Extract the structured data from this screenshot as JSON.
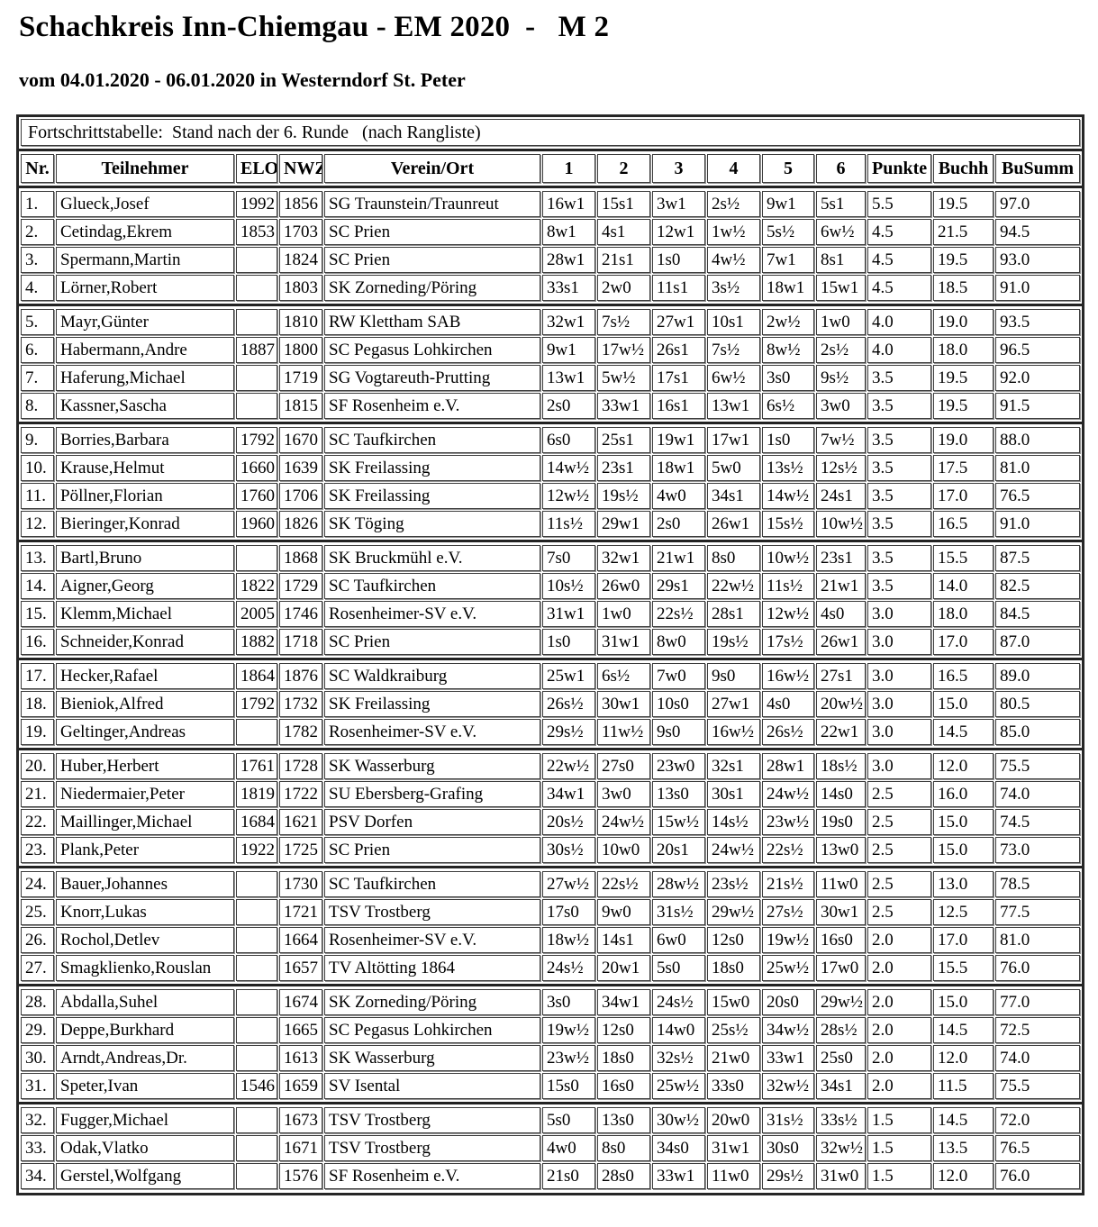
{
  "title": "Schachkreis Inn-Chiemgau - EM 2020  -   M 2",
  "subtitle": "vom 04.01.2020 - 06.01.2020 in Westerndorf St. Peter",
  "table": {
    "caption": "Fortschrittstabelle:  Stand nach der 6. Runde   (nach Rangliste)",
    "headers": [
      "Nr.",
      "Teilnehmer",
      "ELO",
      "NWZ",
      "Verein/Ort",
      "1",
      "2",
      "3",
      "4",
      "5",
      "6",
      "Punkte",
      "Buchh",
      "BuSumm"
    ],
    "group_start_rows": [
      1,
      5,
      9,
      13,
      17,
      20,
      24,
      28,
      32
    ],
    "rows": [
      {
        "nr": "1.",
        "name": "Glueck,Josef",
        "elo": "1992",
        "nwz": "1856",
        "verein": "SG Traunstein/Traunreut",
        "rounds": [
          "16w1",
          "15s1",
          "3w1",
          "2s½",
          "9w1",
          "5s1"
        ],
        "punkte": "5.5",
        "buchh": "19.5",
        "busumm": "97.0"
      },
      {
        "nr": "2.",
        "name": "Cetindag,Ekrem",
        "elo": "1853",
        "nwz": "1703",
        "verein": "SC Prien",
        "rounds": [
          "8w1",
          "4s1",
          "12w1",
          "1w½",
          "5s½",
          "6w½"
        ],
        "punkte": "4.5",
        "buchh": "21.5",
        "busumm": "94.5"
      },
      {
        "nr": "3.",
        "name": "Spermann,Martin",
        "elo": "",
        "nwz": "1824",
        "verein": "SC Prien",
        "rounds": [
          "28w1",
          "21s1",
          "1s0",
          "4w½",
          "7w1",
          "8s1"
        ],
        "punkte": "4.5",
        "buchh": "19.5",
        "busumm": "93.0"
      },
      {
        "nr": "4.",
        "name": "Lörner,Robert",
        "elo": "",
        "nwz": "1803",
        "verein": "SK Zorneding/Pöring",
        "rounds": [
          "33s1",
          "2w0",
          "11s1",
          "3s½",
          "18w1",
          "15w1"
        ],
        "punkte": "4.5",
        "buchh": "18.5",
        "busumm": "91.0"
      },
      {
        "nr": "5.",
        "name": "Mayr,Günter",
        "elo": "",
        "nwz": "1810",
        "verein": "RW Klettham SAB",
        "rounds": [
          "32w1",
          "7s½",
          "27w1",
          "10s1",
          "2w½",
          "1w0"
        ],
        "punkte": "4.0",
        "buchh": "19.0",
        "busumm": "93.5"
      },
      {
        "nr": "6.",
        "name": "Habermann,Andre",
        "elo": "1887",
        "nwz": "1800",
        "verein": "SC Pegasus Lohkirchen",
        "rounds": [
          "9w1",
          "17w½",
          "26s1",
          "7s½",
          "8w½",
          "2s½"
        ],
        "punkte": "4.0",
        "buchh": "18.0",
        "busumm": "96.5"
      },
      {
        "nr": "7.",
        "name": "Haferung,Michael",
        "elo": "",
        "nwz": "1719",
        "verein": "SG Vogtareuth-Prutting",
        "rounds": [
          "13w1",
          "5w½",
          "17s1",
          "6w½",
          "3s0",
          "9s½"
        ],
        "punkte": "3.5",
        "buchh": "19.5",
        "busumm": "92.0"
      },
      {
        "nr": "8.",
        "name": "Kassner,Sascha",
        "elo": "",
        "nwz": "1815",
        "verein": "SF Rosenheim e.V.",
        "rounds": [
          "2s0",
          "33w1",
          "16s1",
          "13w1",
          "6s½",
          "3w0"
        ],
        "punkte": "3.5",
        "buchh": "19.5",
        "busumm": "91.5"
      },
      {
        "nr": "9.",
        "name": "Borries,Barbara",
        "elo": "1792",
        "nwz": "1670",
        "verein": "SC Taufkirchen",
        "rounds": [
          "6s0",
          "25s1",
          "19w1",
          "17w1",
          "1s0",
          "7w½"
        ],
        "punkte": "3.5",
        "buchh": "19.0",
        "busumm": "88.0"
      },
      {
        "nr": "10.",
        "name": "Krause,Helmut",
        "elo": "1660",
        "nwz": "1639",
        "verein": "SK Freilassing",
        "rounds": [
          "14w½",
          "23s1",
          "18w1",
          "5w0",
          "13s½",
          "12s½"
        ],
        "punkte": "3.5",
        "buchh": "17.5",
        "busumm": "81.0"
      },
      {
        "nr": "11.",
        "name": "Pöllner,Florian",
        "elo": "1760",
        "nwz": "1706",
        "verein": "SK Freilassing",
        "rounds": [
          "12w½",
          "19s½",
          "4w0",
          "34s1",
          "14w½",
          "24s1"
        ],
        "punkte": "3.5",
        "buchh": "17.0",
        "busumm": "76.5"
      },
      {
        "nr": "12.",
        "name": "Bieringer,Konrad",
        "elo": "1960",
        "nwz": "1826",
        "verein": "SK Töging",
        "rounds": [
          "11s½",
          "29w1",
          "2s0",
          "26w1",
          "15s½",
          "10w½"
        ],
        "punkte": "3.5",
        "buchh": "16.5",
        "busumm": "91.0"
      },
      {
        "nr": "13.",
        "name": "Bartl,Bruno",
        "elo": "",
        "nwz": "1868",
        "verein": "SK Bruckmühl e.V.",
        "rounds": [
          "7s0",
          "32w1",
          "21w1",
          "8s0",
          "10w½",
          "23s1"
        ],
        "punkte": "3.5",
        "buchh": "15.5",
        "busumm": "87.5"
      },
      {
        "nr": "14.",
        "name": "Aigner,Georg",
        "elo": "1822",
        "nwz": "1729",
        "verein": "SC Taufkirchen",
        "rounds": [
          "10s½",
          "26w0",
          "29s1",
          "22w½",
          "11s½",
          "21w1"
        ],
        "punkte": "3.5",
        "buchh": "14.0",
        "busumm": "82.5"
      },
      {
        "nr": "15.",
        "name": "Klemm,Michael",
        "elo": "2005",
        "nwz": "1746",
        "verein": "Rosenheimer-SV e.V.",
        "rounds": [
          "31w1",
          "1w0",
          "22s½",
          "28s1",
          "12w½",
          "4s0"
        ],
        "punkte": "3.0",
        "buchh": "18.0",
        "busumm": "84.5"
      },
      {
        "nr": "16.",
        "name": "Schneider,Konrad",
        "elo": "1882",
        "nwz": "1718",
        "verein": "SC Prien",
        "rounds": [
          "1s0",
          "31w1",
          "8w0",
          "19s½",
          "17s½",
          "26w1"
        ],
        "punkte": "3.0",
        "buchh": "17.0",
        "busumm": "87.0"
      },
      {
        "nr": "17.",
        "name": "Hecker,Rafael",
        "elo": "1864",
        "nwz": "1876",
        "verein": "SC Waldkraiburg",
        "rounds": [
          "25w1",
          "6s½",
          "7w0",
          "9s0",
          "16w½",
          "27s1"
        ],
        "punkte": "3.0",
        "buchh": "16.5",
        "busumm": "89.0"
      },
      {
        "nr": "18.",
        "name": "Bieniok,Alfred",
        "elo": "1792",
        "nwz": "1732",
        "verein": "SK Freilassing",
        "rounds": [
          "26s½",
          "30w1",
          "10s0",
          "27w1",
          "4s0",
          "20w½"
        ],
        "punkte": "3.0",
        "buchh": "15.0",
        "busumm": "80.5"
      },
      {
        "nr": "19.",
        "name": "Geltinger,Andreas",
        "elo": "",
        "nwz": "1782",
        "verein": "Rosenheimer-SV e.V.",
        "rounds": [
          "29s½",
          "11w½",
          "9s0",
          "16w½",
          "26s½",
          "22w1"
        ],
        "punkte": "3.0",
        "buchh": "14.5",
        "busumm": "85.0"
      },
      {
        "nr": "20.",
        "name": "Huber,Herbert",
        "elo": "1761",
        "nwz": "1728",
        "verein": "SK Wasserburg",
        "rounds": [
          "22w½",
          "27s0",
          "23w0",
          "32s1",
          "28w1",
          "18s½"
        ],
        "punkte": "3.0",
        "buchh": "12.0",
        "busumm": "75.5"
      },
      {
        "nr": "21.",
        "name": "Niedermaier,Peter",
        "elo": "1819",
        "nwz": "1722",
        "verein": "SU Ebersberg-Grafing",
        "rounds": [
          "34w1",
          "3w0",
          "13s0",
          "30s1",
          "24w½",
          "14s0"
        ],
        "punkte": "2.5",
        "buchh": "16.0",
        "busumm": "74.0"
      },
      {
        "nr": "22.",
        "name": "Maillinger,Michael",
        "elo": "1684",
        "nwz": "1621",
        "verein": "PSV Dorfen",
        "rounds": [
          "20s½",
          "24w½",
          "15w½",
          "14s½",
          "23w½",
          "19s0"
        ],
        "punkte": "2.5",
        "buchh": "15.0",
        "busumm": "74.5"
      },
      {
        "nr": "23.",
        "name": "Plank,Peter",
        "elo": "1922",
        "nwz": "1725",
        "verein": "SC Prien",
        "rounds": [
          "30s½",
          "10w0",
          "20s1",
          "24w½",
          "22s½",
          "13w0"
        ],
        "punkte": "2.5",
        "buchh": "15.0",
        "busumm": "73.0"
      },
      {
        "nr": "24.",
        "name": "Bauer,Johannes",
        "elo": "",
        "nwz": "1730",
        "verein": "SC Taufkirchen",
        "rounds": [
          "27w½",
          "22s½",
          "28w½",
          "23s½",
          "21s½",
          "11w0"
        ],
        "punkte": "2.5",
        "buchh": "13.0",
        "busumm": "78.5"
      },
      {
        "nr": "25.",
        "name": "Knorr,Lukas",
        "elo": "",
        "nwz": "1721",
        "verein": "TSV Trostberg",
        "rounds": [
          "17s0",
          "9w0",
          "31s½",
          "29w½",
          "27s½",
          "30w1"
        ],
        "punkte": "2.5",
        "buchh": "12.5",
        "busumm": "77.5"
      },
      {
        "nr": "26.",
        "name": "Rochol,Detlev",
        "elo": "",
        "nwz": "1664",
        "verein": "Rosenheimer-SV e.V.",
        "rounds": [
          "18w½",
          "14s1",
          "6w0",
          "12s0",
          "19w½",
          "16s0"
        ],
        "punkte": "2.0",
        "buchh": "17.0",
        "busumm": "81.0"
      },
      {
        "nr": "27.",
        "name": "Smagklienko,Rouslan",
        "elo": "",
        "nwz": "1657",
        "verein": "TV Altötting 1864",
        "rounds": [
          "24s½",
          "20w1",
          "5s0",
          "18s0",
          "25w½",
          "17w0"
        ],
        "punkte": "2.0",
        "buchh": "15.5",
        "busumm": "76.0"
      },
      {
        "nr": "28.",
        "name": "Abdalla,Suhel",
        "elo": "",
        "nwz": "1674",
        "verein": "SK Zorneding/Pöring",
        "rounds": [
          "3s0",
          "34w1",
          "24s½",
          "15w0",
          "20s0",
          "29w½"
        ],
        "punkte": "2.0",
        "buchh": "15.0",
        "busumm": "77.0"
      },
      {
        "nr": "29.",
        "name": "Deppe,Burkhard",
        "elo": "",
        "nwz": "1665",
        "verein": "SC Pegasus Lohkirchen",
        "rounds": [
          "19w½",
          "12s0",
          "14w0",
          "25s½",
          "34w½",
          "28s½"
        ],
        "punkte": "2.0",
        "buchh": "14.5",
        "busumm": "72.5"
      },
      {
        "nr": "30.",
        "name": "Arndt,Andreas,Dr.",
        "elo": "",
        "nwz": "1613",
        "verein": "SK Wasserburg",
        "rounds": [
          "23w½",
          "18s0",
          "32s½",
          "21w0",
          "33w1",
          "25s0"
        ],
        "punkte": "2.0",
        "buchh": "12.0",
        "busumm": "74.0"
      },
      {
        "nr": "31.",
        "name": "Speter,Ivan",
        "elo": "1546",
        "nwz": "1659",
        "verein": "SV Isental",
        "rounds": [
          "15s0",
          "16s0",
          "25w½",
          "33s0",
          "32w½",
          "34s1"
        ],
        "punkte": "2.0",
        "buchh": "11.5",
        "busumm": "75.5"
      },
      {
        "nr": "32.",
        "name": "Fugger,Michael",
        "elo": "",
        "nwz": "1673",
        "verein": "TSV Trostberg",
        "rounds": [
          "5s0",
          "13s0",
          "30w½",
          "20w0",
          "31s½",
          "33s½"
        ],
        "punkte": "1.5",
        "buchh": "14.5",
        "busumm": "72.0"
      },
      {
        "nr": "33.",
        "name": "Odak,Vlatko",
        "elo": "",
        "nwz": "1671",
        "verein": "TSV Trostberg",
        "rounds": [
          "4w0",
          "8s0",
          "34s0",
          "31w1",
          "30s0",
          "32w½"
        ],
        "punkte": "1.5",
        "buchh": "13.5",
        "busumm": "76.5"
      },
      {
        "nr": "34.",
        "name": "Gerstel,Wolfgang",
        "elo": "",
        "nwz": "1576",
        "verein": "SF Rosenheim e.V.",
        "rounds": [
          "21s0",
          "28s0",
          "33w1",
          "11w0",
          "29s½",
          "31w0"
        ],
        "punkte": "1.5",
        "buchh": "12.0",
        "busumm": "76.0"
      }
    ]
  }
}
